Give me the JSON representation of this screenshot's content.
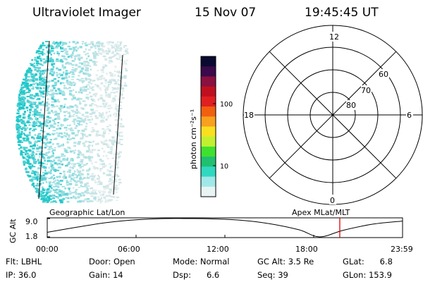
{
  "header": {
    "instrument": "Ultraviolet Imager",
    "date": "15 Nov 07",
    "time": "19:45:45 UT"
  },
  "colorbar": {
    "unit_label": "photon cm⁻²s⁻¹",
    "ticks": [
      "100",
      "10"
    ],
    "colors": [
      "#0a0a30",
      "#3a0a4a",
      "#8a1040",
      "#c01020",
      "#e02020",
      "#f06010",
      "#f8a020",
      "#f8e020",
      "#c0f030",
      "#40e030",
      "#20c070",
      "#30d8c0",
      "#a0e8e8",
      "#e8f4f4"
    ]
  },
  "polar_plot": {
    "mlt_labels": [
      "12",
      "18",
      "6",
      "0"
    ],
    "lat_labels": [
      "60",
      "70",
      "80"
    ]
  },
  "timeline": {
    "axis_label": "GC Alt",
    "ytick_labels": [
      "9.0",
      "1.8"
    ],
    "left_title": "Geographic Lat/Lon",
    "right_title": "Apex MLat/MLT",
    "time_labels": [
      "00:00",
      "06:00",
      "12:00",
      "18:00",
      "23:59"
    ]
  },
  "chart_data": {
    "type": "line",
    "title": "",
    "xlabel": "",
    "ylabel": "GC Alt",
    "ylim": [
      1.8,
      9.0
    ],
    "xlim": [
      "00:00",
      "23:59"
    ],
    "x_hours": [
      0,
      2,
      4,
      6,
      8,
      9.5,
      11,
      13,
      15,
      17,
      18.4,
      20,
      22,
      24
    ],
    "series": [
      {
        "values": [
          3.6,
          5.6,
          7.4,
          8.5,
          9.0,
          9.0,
          8.9,
          8.4,
          7.0,
          4.6,
          1.8,
          4.4,
          6.8,
          8.0
        ]
      }
    ],
    "current_time_hours": 19.76,
    "marker_color": "#e00000"
  },
  "info": {
    "flt": "Flt: LBHL",
    "ip": "IP: 36.0",
    "door": "Door: Open",
    "gain": "Gain: 14",
    "mode": "Mode: Normal",
    "dsp": "Dsp:      6.6",
    "gcalt": "GC Alt: 3.5 Re",
    "seq": "Seq: 39",
    "glat": "GLat:      6.8",
    "glon": "GLon: 153.9"
  }
}
